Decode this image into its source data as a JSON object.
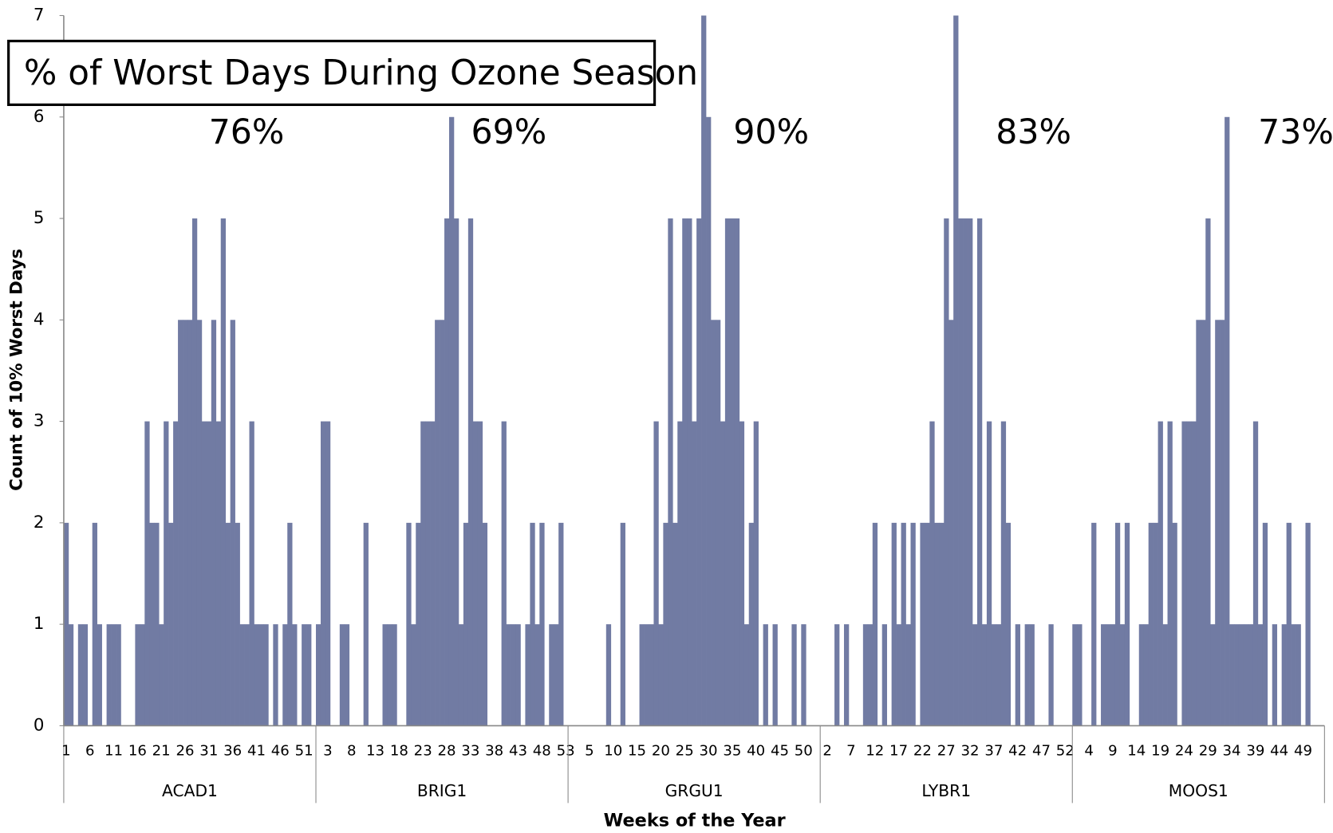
{
  "chart_data": {
    "type": "bar",
    "title": "% of Worst Days During Ozone Season",
    "y_label": "Count of 10% Worst Days",
    "x_label": "Weeks of the Year",
    "ylim": [
      0,
      7
    ],
    "yticks": [
      0,
      1,
      2,
      3,
      4,
      5,
      6,
      7
    ],
    "color": "#717ba3",
    "groups": [
      {
        "name": "ACAD1",
        "annotation": "76%",
        "weeks": [
          1,
          null,
          null,
          null,
          null,
          6,
          null,
          null,
          null,
          null,
          11,
          null,
          null,
          null,
          null,
          16,
          null,
          null,
          null,
          null,
          21,
          null,
          null,
          null,
          null,
          26,
          null,
          null,
          null,
          null,
          31,
          null,
          null,
          null,
          null,
          36,
          null,
          null,
          null,
          null,
          41,
          null,
          null,
          null,
          null,
          46,
          null,
          null,
          null,
          null,
          51,
          null,
          null
        ],
        "values": [
          2,
          1,
          0,
          1,
          1,
          0,
          2,
          1,
          0,
          1,
          1,
          1,
          0,
          0,
          0,
          1,
          1,
          3,
          2,
          2,
          1,
          3,
          2,
          3,
          4,
          4,
          4,
          5,
          4,
          3,
          3,
          4,
          3,
          5,
          2,
          4,
          2,
          1,
          1,
          3,
          1,
          1,
          1,
          0,
          1,
          0,
          1,
          2,
          1,
          0,
          1,
          1,
          0
        ]
      },
      {
        "name": "BRIG1",
        "annotation": "69%",
        "weeks": [
          null,
          null,
          3,
          null,
          null,
          null,
          null,
          8,
          null,
          null,
          null,
          null,
          13,
          null,
          null,
          null,
          null,
          18,
          null,
          null,
          null,
          null,
          23,
          null,
          null,
          null,
          null,
          28,
          null,
          null,
          null,
          null,
          33,
          null,
          null,
          null,
          null,
          38,
          null,
          null,
          null,
          null,
          43,
          null,
          null,
          null,
          null,
          48,
          null,
          null,
          null,
          null,
          53
        ],
        "values": [
          1,
          3,
          3,
          0,
          0,
          1,
          1,
          0,
          0,
          0,
          2,
          0,
          0,
          0,
          1,
          1,
          1,
          0,
          0,
          2,
          1,
          2,
          3,
          3,
          3,
          4,
          4,
          5,
          6,
          5,
          1,
          2,
          5,
          3,
          3,
          2,
          0,
          0,
          0,
          3,
          1,
          1,
          1,
          0,
          1,
          2,
          1,
          2,
          0,
          1,
          1,
          2,
          0
        ]
      },
      {
        "name": "GRGU1",
        "annotation": "90%",
        "weeks": [
          null,
          null,
          null,
          null,
          5,
          null,
          null,
          null,
          null,
          10,
          null,
          null,
          null,
          null,
          15,
          null,
          null,
          null,
          null,
          20,
          null,
          null,
          null,
          null,
          25,
          null,
          null,
          null,
          null,
          30,
          null,
          null,
          null,
          null,
          35,
          null,
          null,
          null,
          null,
          40,
          null,
          null,
          null,
          null,
          45,
          null,
          null,
          null,
          null,
          50,
          null,
          null,
          null
        ],
        "values": [
          0,
          0,
          0,
          0,
          0,
          0,
          0,
          0,
          1,
          0,
          0,
          2,
          0,
          0,
          0,
          1,
          1,
          1,
          3,
          1,
          2,
          5,
          2,
          3,
          5,
          5,
          3,
          5,
          7,
          6,
          4,
          4,
          3,
          5,
          5,
          5,
          3,
          1,
          2,
          3,
          0,
          1,
          0,
          1,
          0,
          0,
          0,
          1,
          0,
          1,
          0,
          0,
          0
        ]
      },
      {
        "name": "LYBR1",
        "annotation": "83%",
        "weeks": [
          null,
          2,
          null,
          null,
          null,
          null,
          7,
          null,
          null,
          null,
          null,
          12,
          null,
          null,
          null,
          null,
          17,
          null,
          null,
          null,
          null,
          22,
          null,
          null,
          null,
          null,
          27,
          null,
          null,
          null,
          null,
          32,
          null,
          null,
          null,
          null,
          37,
          null,
          null,
          null,
          null,
          42,
          null,
          null,
          null,
          null,
          47,
          null,
          null,
          null,
          null,
          52,
          null
        ],
        "values": [
          0,
          0,
          0,
          1,
          0,
          1,
          0,
          0,
          0,
          1,
          1,
          2,
          0,
          1,
          0,
          2,
          1,
          2,
          1,
          2,
          0,
          2,
          2,
          3,
          2,
          2,
          5,
          4,
          7,
          5,
          5,
          5,
          1,
          5,
          1,
          3,
          1,
          1,
          3,
          2,
          0,
          1,
          0,
          1,
          1,
          0,
          0,
          0,
          1,
          0,
          0,
          0,
          0
        ]
      },
      {
        "name": "MOOS1",
        "annotation": "73%",
        "weeks": [
          null,
          null,
          null,
          4,
          null,
          null,
          null,
          null,
          9,
          null,
          null,
          null,
          null,
          14,
          null,
          null,
          null,
          null,
          19,
          null,
          null,
          null,
          null,
          24,
          null,
          null,
          null,
          null,
          29,
          null,
          null,
          null,
          null,
          34,
          null,
          null,
          null,
          null,
          39,
          null,
          null,
          null,
          null,
          44,
          null,
          null,
          null,
          null,
          49,
          null,
          null,
          null,
          null
        ],
        "values": [
          1,
          1,
          0,
          0,
          2,
          0,
          1,
          1,
          1,
          2,
          1,
          2,
          0,
          0,
          1,
          1,
          2,
          2,
          3,
          1,
          3,
          2,
          0,
          3,
          3,
          3,
          4,
          4,
          5,
          1,
          4,
          4,
          6,
          1,
          1,
          1,
          1,
          1,
          3,
          1,
          2,
          0,
          1,
          0,
          1,
          2,
          1,
          1,
          0,
          2,
          0,
          0,
          0
        ]
      }
    ]
  }
}
